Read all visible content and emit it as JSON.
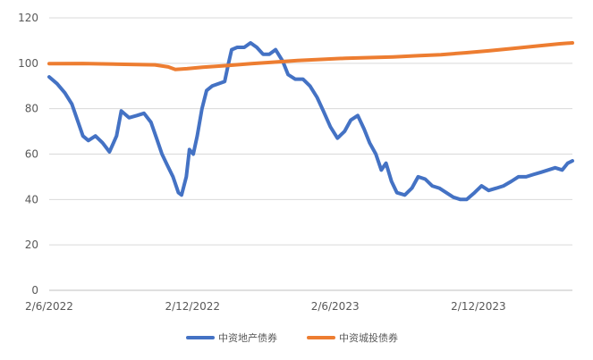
{
  "chart_data": {
    "type": "line",
    "title": "",
    "xlabel": "",
    "ylabel": "",
    "x_range": [
      "2022-06-02",
      "2024-03-31"
    ],
    "x_ticks": [
      "2/6/2022",
      "2/12/2022",
      "2/6/2023",
      "2/12/2023"
    ],
    "x_tick_dates": [
      "2022-06-02",
      "2022-12-02",
      "2023-06-02",
      "2023-12-02"
    ],
    "ylim": [
      0,
      120
    ],
    "y_ticks": [
      "0",
      "20",
      "40",
      "60",
      "80",
      "100",
      "120"
    ],
    "grid": "horizontal",
    "legend_position": "bottom",
    "series": [
      {
        "name": "中资地产债券",
        "color": "#4472C4",
        "points": [
          [
            "2022-06-02",
            94
          ],
          [
            "2022-06-12",
            91
          ],
          [
            "2022-06-22",
            87
          ],
          [
            "2022-07-01",
            82
          ],
          [
            "2022-07-09",
            74
          ],
          [
            "2022-07-15",
            68
          ],
          [
            "2022-07-22",
            66
          ],
          [
            "2022-07-31",
            68
          ],
          [
            "2022-08-09",
            65
          ],
          [
            "2022-08-18",
            61
          ],
          [
            "2022-08-27",
            68
          ],
          [
            "2022-09-02",
            79
          ],
          [
            "2022-09-12",
            76
          ],
          [
            "2022-09-22",
            77
          ],
          [
            "2022-10-01",
            78
          ],
          [
            "2022-10-10",
            74
          ],
          [
            "2022-10-17",
            67
          ],
          [
            "2022-10-24",
            60
          ],
          [
            "2022-10-31",
            55
          ],
          [
            "2022-11-07",
            50
          ],
          [
            "2022-11-14",
            43
          ],
          [
            "2022-11-18",
            42
          ],
          [
            "2022-11-24",
            50
          ],
          [
            "2022-11-28",
            62
          ],
          [
            "2022-12-03",
            60
          ],
          [
            "2022-12-08",
            68
          ],
          [
            "2022-12-14",
            80
          ],
          [
            "2022-12-20",
            88
          ],
          [
            "2022-12-27",
            90
          ],
          [
            "2023-01-04",
            91
          ],
          [
            "2023-01-12",
            92
          ],
          [
            "2023-01-17",
            100
          ],
          [
            "2023-01-21",
            106
          ],
          [
            "2023-01-28",
            107
          ],
          [
            "2023-02-06",
            107
          ],
          [
            "2023-02-14",
            109
          ],
          [
            "2023-02-22",
            107
          ],
          [
            "2023-03-02",
            104
          ],
          [
            "2023-03-10",
            104
          ],
          [
            "2023-03-18",
            106
          ],
          [
            "2023-03-27",
            101
          ],
          [
            "2023-04-03",
            95
          ],
          [
            "2023-04-12",
            93
          ],
          [
            "2023-04-22",
            93
          ],
          [
            "2023-05-01",
            90
          ],
          [
            "2023-05-10",
            85
          ],
          [
            "2023-05-18",
            79
          ],
          [
            "2023-05-27",
            72
          ],
          [
            "2023-06-05",
            67
          ],
          [
            "2023-06-14",
            70
          ],
          [
            "2023-06-22",
            75
          ],
          [
            "2023-07-01",
            77
          ],
          [
            "2023-07-09",
            71
          ],
          [
            "2023-07-16",
            65
          ],
          [
            "2023-07-24",
            60
          ],
          [
            "2023-07-31",
            53
          ],
          [
            "2023-08-06",
            56
          ],
          [
            "2023-08-13",
            48
          ],
          [
            "2023-08-20",
            43
          ],
          [
            "2023-08-30",
            42
          ],
          [
            "2023-09-08",
            45
          ],
          [
            "2023-09-16",
            50
          ],
          [
            "2023-09-25",
            49
          ],
          [
            "2023-10-04",
            46
          ],
          [
            "2023-10-13",
            45
          ],
          [
            "2023-10-22",
            43
          ],
          [
            "2023-10-31",
            41
          ],
          [
            "2023-11-09",
            40
          ],
          [
            "2023-11-17",
            40
          ],
          [
            "2023-11-27",
            43
          ],
          [
            "2023-12-06",
            46
          ],
          [
            "2023-12-15",
            44
          ],
          [
            "2023-12-25",
            45
          ],
          [
            "2024-01-03",
            46
          ],
          [
            "2024-01-13",
            48
          ],
          [
            "2024-01-22",
            50
          ],
          [
            "2024-02-01",
            50
          ],
          [
            "2024-02-10",
            51
          ],
          [
            "2024-02-20",
            52
          ],
          [
            "2024-02-29",
            53
          ],
          [
            "2024-03-09",
            54
          ],
          [
            "2024-03-18",
            53
          ],
          [
            "2024-03-25",
            56
          ],
          [
            "2024-03-31",
            57
          ]
        ]
      },
      {
        "name": "中资城投债券",
        "color": "#ED7D31",
        "points": [
          [
            "2022-06-02",
            99.8
          ],
          [
            "2022-07-15",
            99.9
          ],
          [
            "2022-08-30",
            99.6
          ],
          [
            "2022-10-15",
            99.3
          ],
          [
            "2022-11-01",
            98.4
          ],
          [
            "2022-11-10",
            97.3
          ],
          [
            "2022-11-25",
            97.6
          ],
          [
            "2022-12-15",
            98.3
          ],
          [
            "2023-01-15",
            99.0
          ],
          [
            "2023-02-15",
            99.8
          ],
          [
            "2023-03-15",
            100.5
          ],
          [
            "2023-04-15",
            101.2
          ],
          [
            "2023-05-15",
            101.7
          ],
          [
            "2023-06-15",
            102.2
          ],
          [
            "2023-07-15",
            102.5
          ],
          [
            "2023-08-15",
            102.8
          ],
          [
            "2023-09-15",
            103.3
          ],
          [
            "2023-10-15",
            103.8
          ],
          [
            "2023-11-15",
            104.6
          ],
          [
            "2023-12-15",
            105.5
          ],
          [
            "2024-01-15",
            106.5
          ],
          [
            "2024-02-15",
            107.6
          ],
          [
            "2024-03-15",
            108.6
          ],
          [
            "2024-03-31",
            109.0
          ]
        ]
      }
    ]
  }
}
